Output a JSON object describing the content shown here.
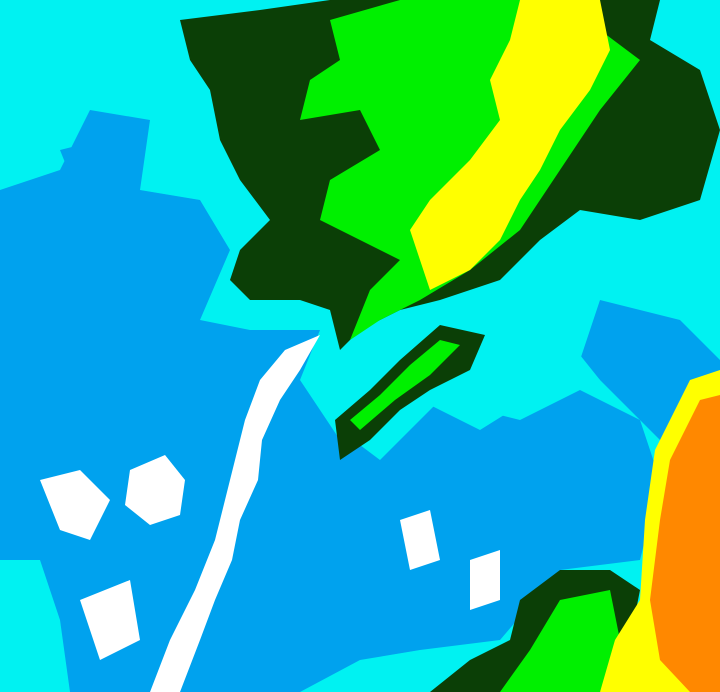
{
  "map": {
    "type": "classified raster",
    "colors": {
      "cyan": "#00f2f2",
      "blue": "#00a2ee",
      "white": "#ffffff",
      "dark_green": "#0b3f06",
      "green": "#00f000",
      "yellow": "#ffff00",
      "orange": "#ff8800"
    }
  }
}
